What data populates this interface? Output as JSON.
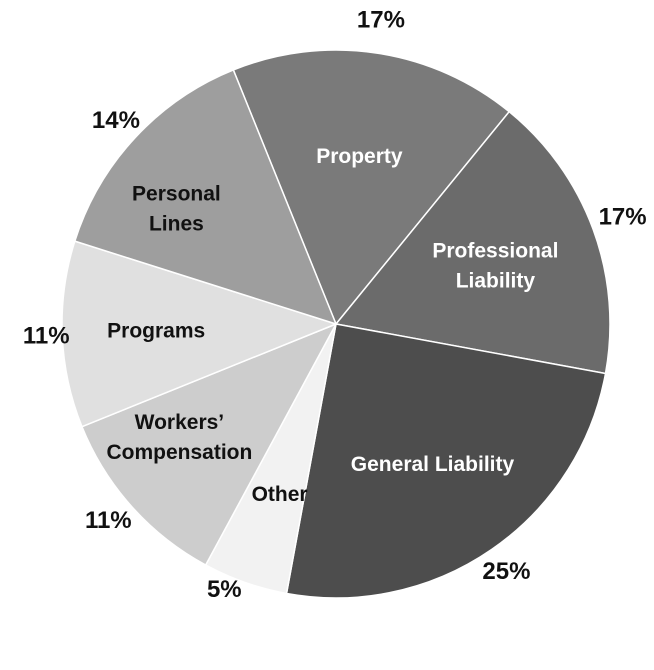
{
  "chart_data": {
    "type": "pie",
    "title": "",
    "legend": "none",
    "slices": [
      {
        "label": "Property",
        "label_lines": [
          "Property"
        ],
        "value": 17,
        "pct_label": "17%",
        "color": "#7a7a7a",
        "text_color": "#ffffff"
      },
      {
        "label": "Professional Liability",
        "label_lines": [
          "Professional",
          "Liability"
        ],
        "value": 17,
        "pct_label": "17%",
        "color": "#6b6b6b",
        "text_color": "#ffffff"
      },
      {
        "label": "General Liability",
        "label_lines": [
          "General Liability"
        ],
        "value": 25,
        "pct_label": "25%",
        "color": "#4d4d4d",
        "text_color": "#ffffff"
      },
      {
        "label": "Other",
        "label_lines": [
          "Other"
        ],
        "value": 5,
        "pct_label": "5%",
        "color": "#f2f2f2",
        "text_color": "#111111"
      },
      {
        "label": "Workers' Compensation",
        "label_lines": [
          "Workers’",
          "Compensation"
        ],
        "value": 11,
        "pct_label": "11%",
        "color": "#cdcdcd",
        "text_color": "#111111"
      },
      {
        "label": "Programs",
        "label_lines": [
          "Programs"
        ],
        "value": 11,
        "pct_label": "11%",
        "color": "#e0e0e0",
        "text_color": "#111111"
      },
      {
        "label": "Personal Lines",
        "label_lines": [
          "Personal",
          "Lines"
        ],
        "value": 14,
        "pct_label": "14%",
        "color": "#9e9e9e",
        "text_color": "#111111"
      }
    ]
  }
}
